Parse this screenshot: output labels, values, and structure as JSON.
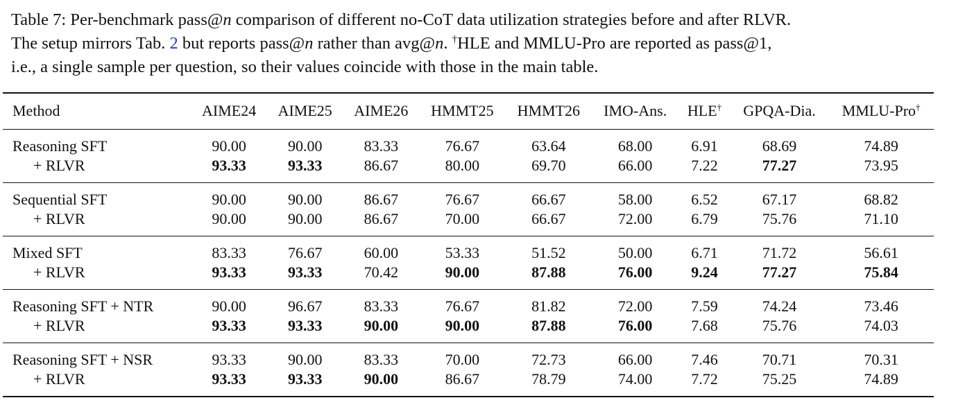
{
  "caption": {
    "label": "Table 7:",
    "line1_a": "Per-benchmark pass@",
    "line1_n": "n",
    "line1_b": " comparison of different no-CoT data utilization strategies before and after RLVR.",
    "line2_a": "The setup mirrors Tab. ",
    "line2_ref": "2",
    "line2_b": " but reports pass@",
    "line2_n1": "n",
    "line2_c": " rather than avg@",
    "line2_n2": "n",
    "line2_d": ". ",
    "dagger": "†",
    "line2_e": "HLE and MMLU-Pro are reported as pass@1,",
    "line3": "i.e., a single sample per question, so their values coincide with those in the main table."
  },
  "headers": {
    "method": "Method",
    "cols": [
      "AIME24",
      "AIME25",
      "AIME26",
      "HMMT25",
      "HMMT26",
      "IMO-Ans.",
      "HLE",
      "GPQA-Dia.",
      "MMLU-Pro"
    ],
    "dagger": "†"
  },
  "groups": [
    {
      "base": {
        "label": "Reasoning SFT",
        "values": [
          "90.00",
          "90.00",
          "83.33",
          "76.67",
          "63.64",
          "68.00",
          "6.91",
          "68.69",
          "74.89"
        ]
      },
      "rlvr": {
        "label": "+ RLVR",
        "values": [
          "93.33",
          "93.33",
          "86.67",
          "80.00",
          "69.70",
          "66.00",
          "7.22",
          "77.27",
          "73.95"
        ]
      }
    },
    {
      "base": {
        "label": "Sequential SFT",
        "values": [
          "90.00",
          "90.00",
          "86.67",
          "76.67",
          "66.67",
          "58.00",
          "6.52",
          "67.17",
          "68.82"
        ]
      },
      "rlvr": {
        "label": "+ RLVR",
        "values": [
          "90.00",
          "90.00",
          "86.67",
          "70.00",
          "66.67",
          "72.00",
          "6.79",
          "75.76",
          "71.10"
        ]
      }
    },
    {
      "base": {
        "label": "Mixed SFT",
        "values": [
          "83.33",
          "76.67",
          "60.00",
          "53.33",
          "51.52",
          "50.00",
          "6.71",
          "71.72",
          "56.61"
        ]
      },
      "rlvr": {
        "label": "+ RLVR",
        "values": [
          "93.33",
          "93.33",
          "70.42",
          "90.00",
          "87.88",
          "76.00",
          "9.24",
          "77.27",
          "75.84"
        ]
      }
    },
    {
      "base": {
        "label": "Reasoning SFT + NTR",
        "values": [
          "90.00",
          "96.67",
          "83.33",
          "76.67",
          "81.82",
          "72.00",
          "7.59",
          "74.24",
          "73.46"
        ]
      },
      "rlvr": {
        "label": "+ RLVR",
        "values": [
          "93.33",
          "93.33",
          "90.00",
          "90.00",
          "87.88",
          "76.00",
          "7.68",
          "75.76",
          "74.03"
        ]
      }
    },
    {
      "base": {
        "label": "Reasoning SFT + NSR",
        "values": [
          "93.33",
          "90.00",
          "83.33",
          "70.00",
          "72.73",
          "66.00",
          "7.46",
          "70.71",
          "70.31"
        ]
      },
      "rlvr": {
        "label": "+ RLVR",
        "values": [
          "93.33",
          "93.33",
          "90.00",
          "86.67",
          "78.79",
          "74.00",
          "7.72",
          "75.25",
          "74.89"
        ]
      }
    }
  ]
}
